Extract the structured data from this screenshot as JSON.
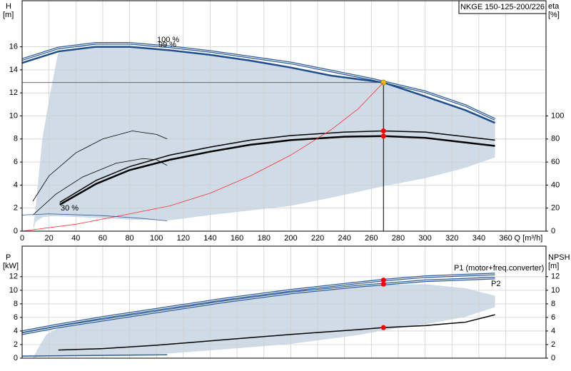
{
  "chart_data": [
    {
      "type": "line",
      "title": "NKGE 150-125-200/226",
      "ylabel": "H",
      "yunit": "[m]",
      "y2label": "eta",
      "y2unit": "[%]",
      "xlabel": "Q [m³/h]",
      "xlim": [
        0,
        390
      ],
      "xticks": [
        0,
        20,
        40,
        60,
        80,
        100,
        120,
        140,
        160,
        180,
        200,
        220,
        240,
        260,
        280,
        300,
        320,
        340,
        360
      ],
      "xtick_labels": true,
      "ylim": [
        0,
        20
      ],
      "yticks": [
        0,
        2,
        4,
        6,
        8,
        10,
        12,
        14,
        16
      ],
      "y2lim": [
        0,
        200
      ],
      "y2ticks": [
        0,
        20,
        40,
        60,
        80,
        100
      ],
      "grid": true,
      "marker_x": 269,
      "duty_y": 12.9,
      "region": {
        "color": "#cfdbe7",
        "x": [
          8,
          10,
          15,
          21,
          27,
          55,
          80,
          110,
          140,
          170,
          200,
          230,
          269,
          300,
          330,
          352
        ],
        "upper": [
          0,
          2,
          8,
          12,
          15.6,
          16.0,
          16.0,
          15.7,
          15.3,
          14.8,
          14.2,
          13.5,
          12.9,
          11.7,
          10.5,
          9.4
        ],
        "lower": [
          0,
          0.8,
          1.2,
          1.3,
          1.3,
          1.15,
          1.0,
          0.95,
          1.4,
          1.8,
          2.2,
          2.9,
          3.9,
          4.6,
          5.5,
          6.4
        ]
      },
      "series": [
        {
          "name": "100 %",
          "color": "#2b5a9a",
          "style": "double",
          "axis": "y",
          "x": [
            0,
            27,
            55,
            80,
            110,
            140,
            170,
            200,
            230,
            260,
            300,
            330,
            352
          ],
          "values": [
            14.9,
            15.9,
            16.3,
            16.3,
            16.0,
            15.6,
            15.1,
            14.6,
            13.9,
            13.2,
            12.1,
            10.9,
            9.7
          ]
        },
        {
          "name": "99 %",
          "color": "#1f4e8c",
          "style": "thick",
          "axis": "y",
          "marker": "#f5c400",
          "x": [
            0,
            27,
            55,
            80,
            110,
            140,
            170,
            200,
            230,
            269,
            300,
            330,
            352
          ],
          "values": [
            14.6,
            15.6,
            16.0,
            16.0,
            15.7,
            15.3,
            14.8,
            14.2,
            13.5,
            12.9,
            11.7,
            10.5,
            9.4
          ]
        },
        {
          "color": "#000000",
          "style": "medium",
          "axis": "y2",
          "marker": "#ff0000",
          "x": [
            28,
            55,
            80,
            110,
            140,
            170,
            200,
            240,
            269,
            300,
            352
          ],
          "values": [
            25,
            44,
            56,
            66,
            73,
            79,
            83,
            86,
            87,
            86,
            79
          ]
        },
        {
          "color": "#000000",
          "style": "thick",
          "axis": "y2",
          "marker": "#ff0000",
          "x": [
            28,
            55,
            80,
            110,
            140,
            170,
            200,
            240,
            269,
            300,
            352
          ],
          "values": [
            23,
            41,
            53,
            62,
            69,
            75,
            79,
            82,
            82.5,
            81,
            74
          ]
        },
        {
          "color": "#000000",
          "style": "thin",
          "axis": "y2",
          "x": [
            8,
            20,
            40,
            60,
            82,
            100,
            108
          ],
          "values": [
            26,
            48,
            68,
            80,
            87,
            84,
            80
          ]
        },
        {
          "color": "#000000",
          "style": "thin",
          "axis": "y2",
          "x": [
            8,
            25,
            45,
            70,
            90,
            100,
            108
          ],
          "values": [
            14,
            32,
            47,
            59,
            63,
            62,
            57
          ]
        },
        {
          "color": "#ff3030",
          "style": "thin",
          "axis": "y",
          "x": [
            0,
            40,
            80,
            110,
            140,
            170,
            200,
            230,
            250,
            269
          ],
          "values": [
            0,
            0.6,
            1.5,
            2.2,
            3.3,
            4.8,
            6.6,
            8.8,
            10.6,
            12.9
          ]
        },
        {
          "name": "30 %",
          "color": "#2b5a9a",
          "style": "thin",
          "axis": "y",
          "x": [
            0,
            20,
            60,
            90,
            108
          ],
          "values": [
            1.4,
            1.5,
            1.35,
            1.1,
            0.9
          ]
        }
      ]
    },
    {
      "type": "line",
      "ylabel": "P",
      "yunit": "[kW]",
      "y2label": "NPSH",
      "y2unit": "[m]",
      "xlim": [
        0,
        390
      ],
      "xticks": [
        0,
        20,
        40,
        60,
        80,
        100,
        120,
        140,
        160,
        180,
        200,
        220,
        240,
        260,
        280,
        300,
        320,
        340,
        360
      ],
      "xtick_labels": false,
      "ylim": [
        0,
        16.5
      ],
      "yticks": [
        0,
        2,
        4,
        6,
        8,
        10,
        12
      ],
      "y2lim": [
        0,
        16.5
      ],
      "y2ticks": [
        0,
        2,
        4,
        6,
        8,
        10,
        12
      ],
      "grid": true,
      "marker_x": 269,
      "region": {
        "color": "#cfdbe7",
        "x": [
          8,
          12,
          18,
          27,
          55,
          80,
          110,
          150,
          200,
          250,
          269,
          300,
          330,
          352
        ],
        "upper": [
          0,
          1.5,
          3.5,
          4.4,
          5.5,
          6.3,
          7.1,
          8.2,
          9.5,
          10.5,
          10.8,
          10.9,
          10.3,
          9.2
        ],
        "lower": [
          0,
          0.2,
          0.3,
          0.3,
          0.4,
          0.5,
          0.7,
          1.3,
          2.1,
          3.4,
          4.1,
          5.0,
          6.1,
          7.5
        ]
      },
      "series": [
        {
          "name": "P1 (motor+freq.converter)",
          "color": "#2b5a9a",
          "style": "double",
          "axis": "y",
          "marker": "#ff0000",
          "x": [
            0,
            27,
            60,
            100,
            150,
            200,
            250,
            269,
            300,
            352
          ],
          "values": [
            3.9,
            4.9,
            6.0,
            7.2,
            8.7,
            10.0,
            11.1,
            11.5,
            12.0,
            12.4
          ]
        },
        {
          "name": "P2",
          "color": "#2b5a9a",
          "style": "double",
          "axis": "y",
          "marker": "#ff0000",
          "x": [
            0,
            27,
            60,
            100,
            150,
            200,
            250,
            269,
            300,
            352
          ],
          "values": [
            3.6,
            4.6,
            5.6,
            6.8,
            8.3,
            9.6,
            10.6,
            10.9,
            11.4,
            11.8
          ]
        },
        {
          "color": "#000000",
          "style": "medium",
          "axis": "y2",
          "marker": "#ff0000",
          "x": [
            27,
            60,
            100,
            150,
            200,
            250,
            269,
            300,
            330,
            352
          ],
          "values": [
            1.2,
            1.4,
            1.9,
            2.7,
            3.5,
            4.2,
            4.5,
            4.8,
            5.3,
            6.4
          ]
        },
        {
          "color": "#2b5a9a",
          "style": "medium",
          "axis": "y",
          "x": [
            0,
            108
          ],
          "values": [
            0.3,
            0.5
          ]
        }
      ]
    }
  ]
}
